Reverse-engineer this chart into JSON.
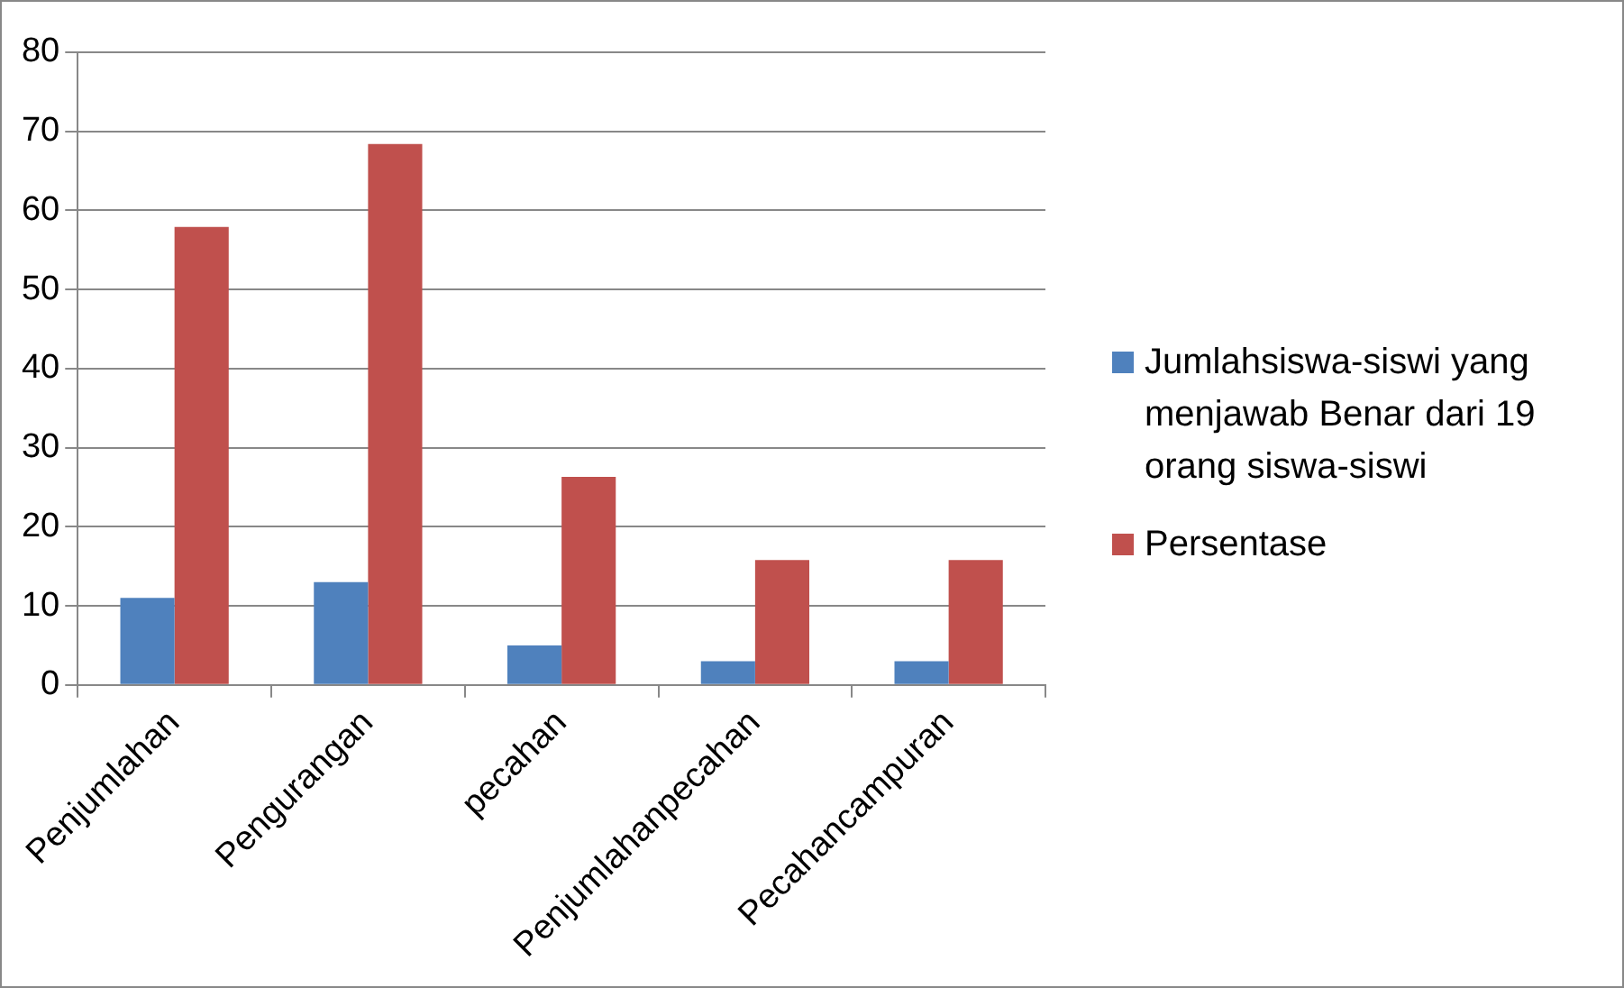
{
  "chart_data": {
    "type": "bar",
    "categories": [
      "Penjumlahan",
      "Pengurangan",
      "pecahan",
      "Penjumlahanpecahan",
      "Pecahancampuran"
    ],
    "series": [
      {
        "name": "Jumlahsiswa-siswi yang menjawab Benar dari 19 orang siswa-siswi",
        "color": "#4f81bd",
        "values": [
          11,
          13,
          5,
          3,
          3
        ]
      },
      {
        "name": "Persentase",
        "color": "#c0504d",
        "values": [
          57.9,
          68.4,
          26.3,
          15.8,
          15.8
        ]
      }
    ],
    "ylim": [
      0,
      80
    ],
    "yticks": [
      0,
      10,
      20,
      30,
      40,
      50,
      60,
      70,
      80
    ],
    "grid": "y",
    "legend": "right"
  }
}
